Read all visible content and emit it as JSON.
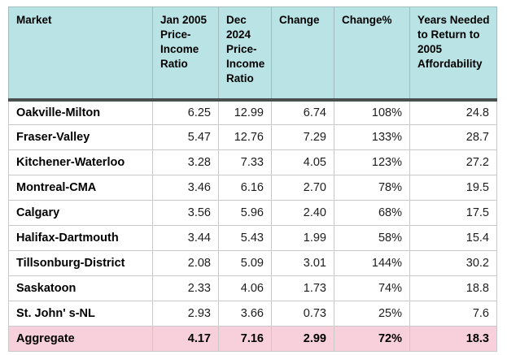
{
  "colors": {
    "header_bg": "#b9e3e5",
    "aggregate_bg": "#f8d0dc",
    "header_separator": "#4a4f50",
    "grid_line": "#c9c9c9"
  },
  "chart_data": {
    "type": "table",
    "columns": [
      "Market",
      "Jan 2005 Price-Income Ratio",
      "Dec 2024 Price-Income Ratio",
      "Change",
      "Change%",
      "Years Needed to Return to 2005 Affordability"
    ],
    "rows": [
      [
        "Oakville-Milton",
        "6.25",
        "12.99",
        "6.74",
        "108%",
        "24.8"
      ],
      [
        "Fraser-Valley",
        "5.47",
        "12.76",
        "7.29",
        "133%",
        "28.7"
      ],
      [
        "Kitchener-Waterloo",
        "3.28",
        "7.33",
        "4.05",
        "123%",
        "27.2"
      ],
      [
        "Montreal-CMA",
        "3.46",
        "6.16",
        "2.70",
        "78%",
        "19.5"
      ],
      [
        "Calgary",
        "3.56",
        "5.96",
        "2.40",
        "68%",
        "17.5"
      ],
      [
        "Halifax-Dartmouth",
        "3.44",
        "5.43",
        "1.99",
        "58%",
        "15.4"
      ],
      [
        "Tillsonburg-District",
        "2.08",
        "5.09",
        "3.01",
        "144%",
        "30.2"
      ],
      [
        "Saskatoon",
        "2.33",
        "4.06",
        "1.73",
        "74%",
        "18.8"
      ],
      [
        "St. John' s-NL",
        "2.93",
        "3.66",
        "0.73",
        "25%",
        "7.6"
      ]
    ],
    "aggregate": [
      "Aggregate",
      "4.17",
      "7.16",
      "2.99",
      "72%",
      "18.3"
    ]
  }
}
